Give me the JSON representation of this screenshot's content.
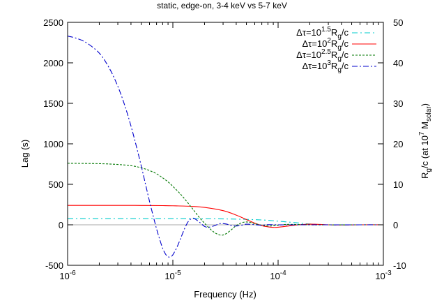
{
  "chart_data": {
    "type": "line",
    "title": "static, edge-on, 3-4 keV vs 5-7 keV",
    "xlabel": "Frequency (Hz)",
    "ylabel": "Lag (s)",
    "y2label": "R_g/c (at 10^7 M_solar)",
    "xscale": "log",
    "xlim": [
      1e-06,
      0.001
    ],
    "ylim": [
      -500,
      2500
    ],
    "y2lim": [
      -10,
      50
    ],
    "xticks": [
      {
        "value": 1e-06,
        "base": "10",
        "exp": "-6"
      },
      {
        "value": 1e-05,
        "base": "10",
        "exp": "-5"
      },
      {
        "value": 0.0001,
        "base": "10",
        "exp": "-4"
      },
      {
        "value": 0.001,
        "base": "10",
        "exp": "-3"
      }
    ],
    "yticks": [
      -500,
      0,
      500,
      1000,
      1500,
      2000,
      2500
    ],
    "y2ticks": [
      -10,
      0,
      10,
      20,
      30,
      40,
      50
    ],
    "zero_line": true,
    "legend_position": "top-right",
    "series": [
      {
        "name": "Δτ=10^1.5 R_g/c",
        "legend": {
          "pre": "Δτ=10",
          "sup": "1.5",
          "mid": "R",
          "sub": "g",
          "post": "/c"
        },
        "color": "#00cccc",
        "dash": "8,4,2,4",
        "x": [
          1e-06,
          2e-06,
          5e-06,
          1e-05,
          2e-05,
          4e-05,
          7e-05,
          0.0001,
          0.00015,
          0.0002,
          0.0003,
          0.0004,
          0.0006,
          0.001
        ],
        "y": [
          76,
          76,
          76,
          76,
          75,
          70,
          60,
          45,
          25,
          10,
          0,
          -3,
          0,
          0
        ]
      },
      {
        "name": "Δτ=10^2 R_g/c",
        "legend": {
          "pre": "Δτ=10",
          "sup": "2",
          "mid": "R",
          "sub": "g",
          "post": "/c"
        },
        "color": "#ff0000",
        "dash": "",
        "x": [
          1e-06,
          3e-06,
          5e-06,
          8e-06,
          1e-05,
          1.5e-05,
          2e-05,
          3e-05,
          4e-05,
          5e-05,
          6e-05,
          7e-05,
          8e-05,
          9e-05,
          0.0001,
          0.00012,
          0.00015,
          0.0002,
          0.00025,
          0.0003,
          0.0004,
          0.0006,
          0.001
        ],
        "y": [
          240,
          240,
          239,
          237,
          235,
          228,
          215,
          175,
          120,
          65,
          20,
          -10,
          -25,
          -32,
          -30,
          -18,
          -2,
          8,
          5,
          0,
          -2,
          0,
          0
        ]
      },
      {
        "name": "Δτ=10^2.5 R_g/c",
        "legend": {
          "pre": "Δτ=10",
          "sup": "2.5",
          "mid": "R",
          "sub": "g",
          "post": "/c"
        },
        "color": "#007700",
        "dash": "3,2",
        "x": [
          1e-06,
          2e-06,
          3e-06,
          4e-06,
          5e-06,
          6e-06,
          7e-06,
          8e-06,
          9e-06,
          1e-05,
          1.2e-05,
          1.4e-05,
          1.6e-05,
          1.8e-05,
          2e-05,
          2.3e-05,
          2.6e-05,
          2.9e-05,
          3.2e-05,
          3.6e-05,
          4e-05,
          4.5e-05,
          5e-05,
          5.5e-05,
          6e-05,
          7e-05,
          8e-05,
          9e-05,
          0.0001,
          0.00012,
          0.00015,
          0.0002,
          0.0003,
          0.0005,
          0.001
        ],
        "y": [
          760,
          755,
          745,
          730,
          705,
          670,
          630,
          580,
          530,
          475,
          370,
          265,
          170,
          85,
          20,
          -60,
          -110,
          -128,
          -110,
          -60,
          -10,
          25,
          35,
          28,
          15,
          -5,
          -15,
          -12,
          -5,
          5,
          4,
          0,
          0,
          0,
          0
        ]
      },
      {
        "name": "Δτ=10^3 R_g/c",
        "legend": {
          "pre": "Δτ=10",
          "sup": "3",
          "mid": "R",
          "sub": "g",
          "post": "/c"
        },
        "color": "#0000cc",
        "dash": "8,3,2,3",
        "x": [
          1e-06,
          1.2e-06,
          1.5e-06,
          2e-06,
          2.5e-06,
          3e-06,
          3.5e-06,
          4e-06,
          4.5e-06,
          5e-06,
          5.5e-06,
          6e-06,
          6.5e-06,
          7e-06,
          7.5e-06,
          8e-06,
          8.5e-06,
          9e-06,
          9.5e-06,
          1e-05,
          1.1e-05,
          1.2e-05,
          1.3e-05,
          1.4e-05,
          1.5e-05,
          1.6e-05,
          1.8e-05,
          2e-05,
          2.2e-05,
          2.5e-05,
          2.8e-05,
          3.2e-05,
          3.6e-05,
          4e-05,
          4.5e-05,
          5e-05,
          6e-05,
          7e-05,
          8e-05,
          0.0001,
          0.00013,
          0.0002,
          0.001
        ],
        "y": [
          2330,
          2305,
          2250,
          2120,
          1930,
          1710,
          1470,
          1220,
          970,
          730,
          500,
          290,
          110,
          -50,
          -180,
          -290,
          -360,
          -395,
          -395,
          -370,
          -270,
          -150,
          -40,
          40,
          75,
          78,
          30,
          -20,
          -30,
          -10,
          15,
          10,
          -8,
          -15,
          -5,
          8,
          2,
          -5,
          2,
          0,
          0,
          0,
          0
        ]
      }
    ]
  }
}
